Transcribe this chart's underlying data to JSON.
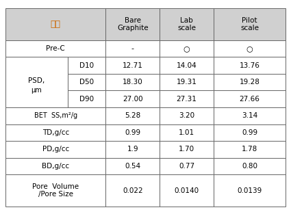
{
  "header_bg": "#d0d0d0",
  "header_text_color": "#cc6600",
  "cell_bg": "#ffffff",
  "border_color": "#666666",
  "col_headers_line1": [
    "Bare",
    "Lab",
    "Pilot"
  ],
  "col_headers_line2": [
    "Graphite",
    "scale",
    "scale"
  ],
  "cell_data": [
    [
      "-",
      "○",
      "○"
    ],
    [
      "12.71",
      "14.04",
      "13.76"
    ],
    [
      "18.30",
      "19.31",
      "19.28"
    ],
    [
      "27.00",
      "27.31",
      "27.66"
    ],
    [
      "5.28",
      "3.20",
      "3.14"
    ],
    [
      "0.99",
      "1.01",
      "0.99"
    ],
    [
      "1.9",
      "1.70",
      "1.78"
    ],
    [
      "0.54",
      "0.77",
      "0.80"
    ],
    [
      "0.022",
      "0.0140",
      "0.0139"
    ]
  ],
  "psd_label_top": "PSD,",
  "psd_label_bot": "μm",
  "psd_sublabels": [
    "D10",
    "D50",
    "D90"
  ],
  "bet_label": "BET  SS,m²/g",
  "td_label": "TD,g/cc",
  "pd_label": "PD,g/cc",
  "bd_label": "BD,g/cc",
  "pore_label": "Pore  Volume\n/Pore Size",
  "pre_label": "Pre-C",
  "gubun_label": "구분"
}
